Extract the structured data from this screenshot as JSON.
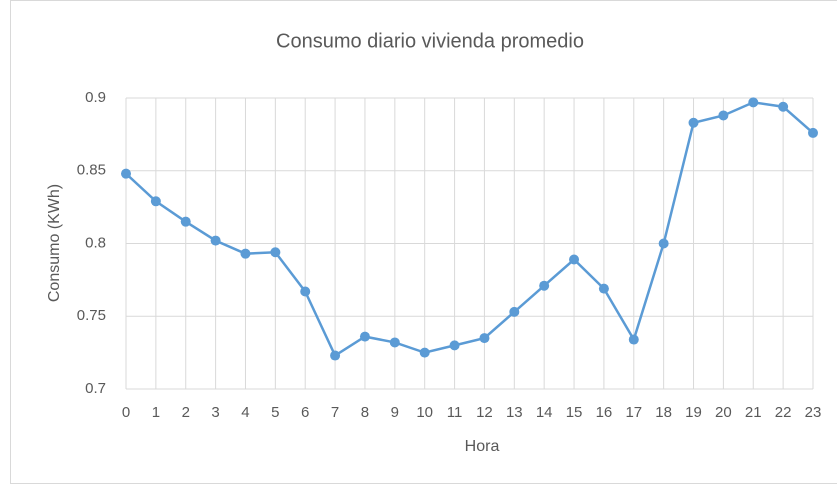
{
  "chart_data": {
    "type": "line",
    "title": "Consumo diario vivienda promedio",
    "x_label": "Hora",
    "y_label": "Consumo (KWh)",
    "x": [
      0,
      1,
      2,
      3,
      4,
      5,
      6,
      7,
      8,
      9,
      10,
      11,
      12,
      13,
      14,
      15,
      16,
      17,
      18,
      19,
      20,
      21,
      22,
      23
    ],
    "series": [
      {
        "name": "Consumo",
        "color": "#5b9bd5",
        "values": [
          0.848,
          0.829,
          0.815,
          0.802,
          0.793,
          0.794,
          0.767,
          0.723,
          0.736,
          0.732,
          0.725,
          0.73,
          0.735,
          0.753,
          0.771,
          0.789,
          0.769,
          0.734,
          0.8,
          0.883,
          0.888,
          0.897,
          0.894,
          0.876
        ]
      }
    ],
    "xlim": [
      0,
      23
    ],
    "xticks": [
      0,
      1,
      2,
      3,
      4,
      5,
      6,
      7,
      8,
      9,
      10,
      11,
      12,
      13,
      14,
      15,
      16,
      17,
      18,
      19,
      20,
      21,
      22,
      23
    ],
    "ylim": [
      0.7,
      0.9
    ],
    "yticks": [
      0.7,
      0.75,
      0.8,
      0.85,
      0.9
    ],
    "grid": true
  }
}
